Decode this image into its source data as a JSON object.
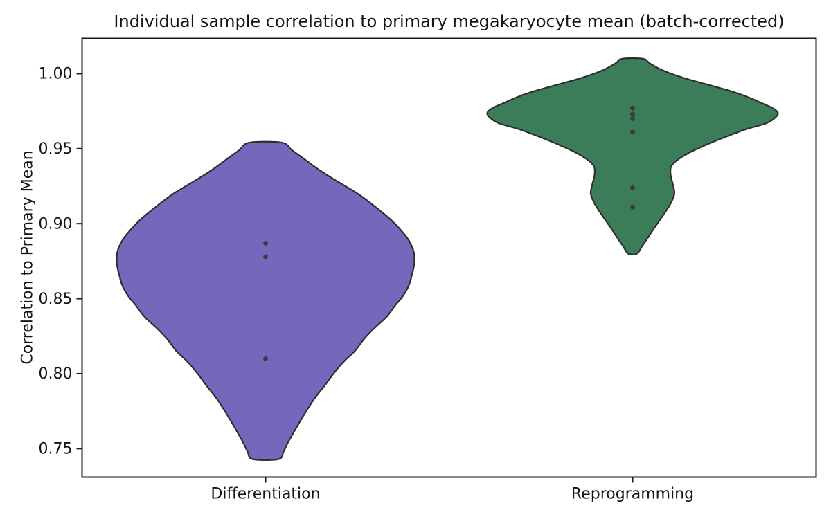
{
  "chart_data": {
    "type": "violin",
    "title": "Individual sample correlation to primary megakaryocyte mean (batch-corrected)",
    "xlabel": "",
    "ylabel": "Correlation to Primary Mean",
    "categories": [
      "Differentiation",
      "Reprogramming"
    ],
    "yticks": [
      "1.00",
      "0.95",
      "0.90",
      "0.85",
      "0.80",
      "0.75"
    ],
    "ytick_values": [
      1.0,
      0.95,
      0.9,
      0.85,
      0.8,
      0.75
    ],
    "ylim": [
      0.731,
      1.0235
    ],
    "grid": false,
    "legend": "none",
    "series": [
      {
        "name": "Differentiation",
        "fill_color": "#7368bb",
        "edge_color": "#2e2e2e",
        "point_color": "#3b3b3b",
        "points": [
          0.887,
          0.878,
          0.81
        ],
        "violin_min": 0.743,
        "violin_max": 0.954,
        "violin_profile": [
          [
            0.954,
            0.044
          ],
          [
            0.949,
            0.072
          ],
          [
            0.943,
            0.106
          ],
          [
            0.936,
            0.145
          ],
          [
            0.929,
            0.19
          ],
          [
            0.92,
            0.251
          ],
          [
            0.912,
            0.295
          ],
          [
            0.904,
            0.335
          ],
          [
            0.897,
            0.364
          ],
          [
            0.889,
            0.39
          ],
          [
            0.881,
            0.404
          ],
          [
            0.873,
            0.405
          ],
          [
            0.865,
            0.398
          ],
          [
            0.858,
            0.389
          ],
          [
            0.851,
            0.372
          ],
          [
            0.846,
            0.355
          ],
          [
            0.838,
            0.33
          ],
          [
            0.83,
            0.295
          ],
          [
            0.823,
            0.268
          ],
          [
            0.815,
            0.243
          ],
          [
            0.808,
            0.213
          ],
          [
            0.8,
            0.185
          ],
          [
            0.792,
            0.161
          ],
          [
            0.784,
            0.135
          ],
          [
            0.777,
            0.116
          ],
          [
            0.769,
            0.096
          ],
          [
            0.761,
            0.077
          ],
          [
            0.754,
            0.061
          ],
          [
            0.748,
            0.049
          ],
          [
            0.743,
            0.035
          ]
        ]
      },
      {
        "name": "Reprogramming",
        "fill_color": "#3b7d58",
        "edge_color": "#2e2e2e",
        "point_color": "#3b3b3b",
        "points": [
          0.977,
          0.973,
          0.97,
          0.961,
          0.924,
          0.911
        ],
        "violin_min": 0.88,
        "violin_max": 1.01,
        "violin_profile": [
          [
            1.01,
            0.028
          ],
          [
            1.007,
            0.046
          ],
          [
            1.003,
            0.075
          ],
          [
            1.0,
            0.105
          ],
          [
            0.996,
            0.155
          ],
          [
            0.992,
            0.215
          ],
          [
            0.988,
            0.272
          ],
          [
            0.984,
            0.318
          ],
          [
            0.98,
            0.355
          ],
          [
            0.977,
            0.382
          ],
          [
            0.974,
            0.396
          ],
          [
            0.971,
            0.39
          ],
          [
            0.967,
            0.365
          ],
          [
            0.963,
            0.31
          ],
          [
            0.958,
            0.255
          ],
          [
            0.953,
            0.205
          ],
          [
            0.948,
            0.16
          ],
          [
            0.943,
            0.125
          ],
          [
            0.938,
            0.105
          ],
          [
            0.932,
            0.104
          ],
          [
            0.926,
            0.11
          ],
          [
            0.92,
            0.114
          ],
          [
            0.914,
            0.105
          ],
          [
            0.908,
            0.09
          ],
          [
            0.902,
            0.073
          ],
          [
            0.896,
            0.056
          ],
          [
            0.89,
            0.04
          ],
          [
            0.885,
            0.026
          ],
          [
            0.88,
            0.012
          ]
        ]
      }
    ]
  }
}
